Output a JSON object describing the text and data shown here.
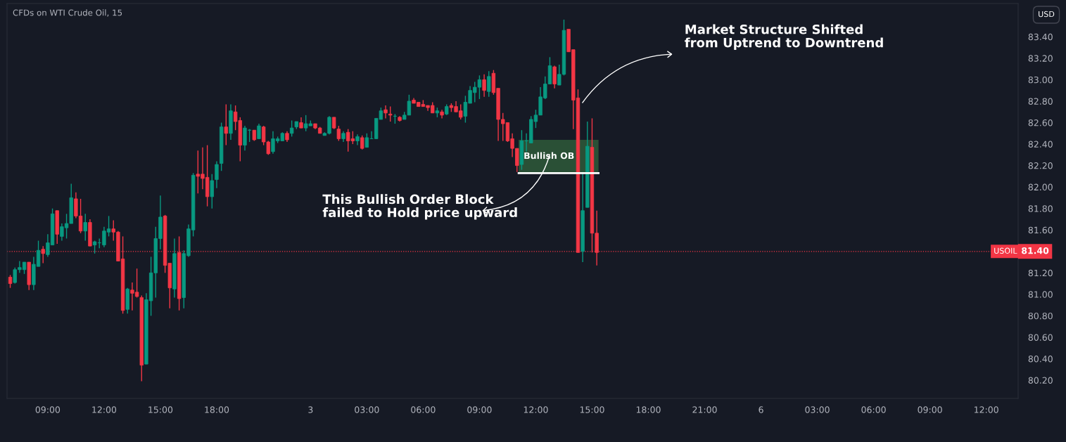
{
  "chart_data": {
    "type": "candlestick",
    "title": "CFDs on WTI Crude Oil, 15",
    "categories": [
      null,
      null,
      null,
      null,
      null,
      null,
      null,
      null,
      "09:00",
      null,
      null,
      null,
      null,
      null,
      null,
      null,
      null,
      null,
      null,
      null,
      "12:00",
      null,
      null,
      null,
      null,
      null,
      null,
      null,
      null,
      null,
      null,
      null,
      "15:00",
      null,
      null,
      null,
      null,
      null,
      null,
      null,
      null,
      null,
      null,
      null,
      "18:00",
      null,
      null,
      null,
      null,
      null,
      null,
      null,
      null,
      null,
      null,
      null,
      null,
      null,
      null,
      null,
      null,
      null,
      null,
      null,
      "3",
      null,
      null,
      null,
      null,
      null,
      null,
      null,
      null,
      null,
      null,
      null,
      "03:00",
      null,
      null,
      null,
      null,
      null,
      null,
      null,
      null,
      null,
      null,
      null,
      "06:00",
      null,
      null,
      null,
      null,
      null,
      null,
      null,
      null,
      null,
      null,
      null,
      "09:00",
      null,
      null,
      null,
      null,
      null,
      null,
      null,
      null,
      null,
      null,
      null,
      "12:00",
      null,
      null,
      null,
      null,
      null,
      null,
      null,
      null,
      null,
      null,
      null,
      "15:00",
      null,
      null,
      null,
      null,
      null,
      null,
      null,
      null,
      null,
      null,
      null,
      "18:00",
      null,
      null,
      null,
      null,
      null,
      null,
      null,
      null,
      null,
      null,
      null,
      "21:00",
      null,
      null,
      null,
      null,
      null,
      null,
      null,
      null,
      null,
      null,
      null,
      "6",
      null,
      null,
      null,
      null,
      null,
      null,
      null,
      null,
      null,
      null,
      null,
      "03:00",
      null,
      null,
      null,
      null,
      null,
      null,
      null,
      null,
      null,
      null,
      null,
      "06:00",
      null,
      null,
      null,
      null,
      null,
      null,
      null,
      null,
      null,
      null,
      null,
      "09:00",
      null,
      null,
      null,
      null,
      null,
      null,
      null,
      null,
      null,
      null,
      null,
      "12:00",
      null,
      null,
      null,
      null,
      null,
      null
    ],
    "ohlc": [
      [
        81.16,
        81.18,
        81.06,
        81.1
      ],
      [
        81.11,
        81.25,
        81.1,
        81.23
      ],
      [
        81.23,
        81.31,
        81.2,
        81.25
      ],
      [
        81.23,
        81.3,
        81.19,
        81.3
      ],
      [
        81.3,
        81.3,
        81.04,
        81.09
      ],
      [
        81.09,
        81.35,
        81.04,
        81.28
      ],
      [
        81.26,
        81.5,
        81.26,
        81.41
      ],
      [
        81.42,
        81.45,
        81.29,
        81.38
      ],
      [
        81.37,
        81.56,
        81.35,
        81.48
      ],
      [
        81.46,
        81.8,
        81.46,
        81.75
      ],
      [
        81.78,
        81.78,
        81.47,
        81.56
      ],
      [
        81.54,
        81.66,
        81.5,
        81.63
      ],
      [
        81.62,
        81.75,
        81.52,
        81.66
      ],
      [
        81.66,
        82.03,
        81.66,
        81.9
      ],
      [
        81.89,
        81.95,
        81.71,
        81.73
      ],
      [
        81.73,
        81.89,
        81.57,
        81.59
      ],
      [
        81.59,
        81.75,
        81.5,
        81.67
      ],
      [
        81.67,
        81.7,
        81.45,
        81.45
      ],
      [
        81.46,
        81.5,
        81.38,
        81.49
      ],
      [
        81.48,
        81.52,
        81.43,
        81.48
      ],
      [
        81.46,
        81.63,
        81.44,
        81.59
      ],
      [
        81.58,
        81.73,
        81.54,
        81.61
      ],
      [
        81.61,
        81.69,
        81.5,
        81.58
      ],
      [
        81.58,
        81.59,
        81.31,
        81.31
      ],
      [
        81.33,
        81.54,
        80.82,
        80.85
      ],
      [
        80.86,
        81.06,
        80.82,
        81.05
      ],
      [
        81.04,
        81.11,
        80.85,
        81.01
      ],
      [
        81.02,
        81.24,
        80.97,
        80.98
      ],
      [
        80.97,
        80.99,
        80.19,
        80.34
      ],
      [
        80.35,
        81.01,
        80.35,
        80.95
      ],
      [
        80.94,
        81.35,
        80.8,
        81.2
      ],
      [
        81.2,
        81.63,
        80.97,
        81.52
      ],
      [
        81.52,
        81.92,
        81.42,
        81.72
      ],
      [
        81.73,
        81.74,
        81.2,
        81.27
      ],
      [
        81.29,
        81.29,
        80.87,
        81.06
      ],
      [
        81.05,
        81.52,
        80.97,
        81.38
      ],
      [
        81.39,
        81.54,
        80.85,
        80.96
      ],
      [
        80.97,
        81.41,
        80.87,
        81.38
      ],
      [
        81.36,
        81.65,
        81.35,
        81.61
      ],
      [
        81.6,
        82.13,
        81.54,
        82.11
      ],
      [
        82.12,
        82.34,
        81.94,
        82.1
      ],
      [
        82.12,
        82.37,
        81.98,
        82.08
      ],
      [
        82.09,
        82.39,
        81.82,
        81.91
      ],
      [
        81.91,
        82.12,
        81.8,
        82.06
      ],
      [
        82.07,
        82.24,
        81.99,
        82.21
      ],
      [
        82.22,
        82.6,
        82.15,
        82.56
      ],
      [
        82.56,
        82.77,
        82.39,
        82.5
      ],
      [
        82.5,
        82.77,
        82.44,
        82.71
      ],
      [
        82.7,
        82.76,
        82.53,
        82.61
      ],
      [
        82.62,
        82.65,
        82.24,
        82.39
      ],
      [
        82.39,
        82.57,
        82.34,
        82.55
      ],
      [
        82.53,
        82.54,
        82.42,
        82.53
      ],
      [
        82.53,
        82.53,
        82.43,
        82.44
      ],
      [
        82.45,
        82.59,
        82.45,
        82.57
      ],
      [
        82.56,
        82.57,
        82.39,
        82.42
      ],
      [
        82.42,
        82.43,
        82.3,
        82.31
      ],
      [
        82.33,
        82.52,
        82.31,
        82.45
      ],
      [
        82.43,
        82.47,
        82.41,
        82.45
      ],
      [
        82.43,
        82.51,
        82.43,
        82.5
      ],
      [
        82.5,
        82.52,
        82.42,
        82.44
      ],
      [
        82.5,
        82.62,
        82.47,
        82.55
      ],
      [
        82.56,
        82.61,
        82.54,
        82.61
      ],
      [
        82.6,
        82.65,
        82.55,
        82.55
      ],
      [
        82.55,
        82.67,
        82.52,
        82.59
      ],
      [
        82.57,
        82.62,
        82.57,
        82.59
      ],
      [
        82.59,
        82.59,
        82.54,
        82.55
      ],
      [
        82.55,
        82.56,
        82.5,
        82.5
      ],
      [
        82.48,
        82.51,
        82.48,
        82.5
      ],
      [
        82.5,
        82.66,
        82.49,
        82.65
      ],
      [
        82.65,
        82.65,
        82.54,
        82.55
      ],
      [
        82.54,
        82.57,
        82.43,
        82.45
      ],
      [
        82.45,
        82.52,
        82.42,
        82.5
      ],
      [
        82.51,
        82.54,
        82.33,
        82.43
      ],
      [
        82.45,
        82.52,
        82.4,
        82.43
      ],
      [
        82.43,
        82.49,
        82.39,
        82.47
      ],
      [
        82.46,
        82.48,
        82.35,
        82.36
      ],
      [
        82.37,
        82.5,
        82.37,
        82.46
      ],
      [
        82.45,
        82.52,
        82.45,
        82.45
      ],
      [
        82.45,
        82.64,
        82.45,
        82.64
      ],
      [
        82.63,
        82.74,
        82.63,
        82.71
      ],
      [
        82.72,
        82.76,
        82.64,
        82.69
      ],
      [
        82.68,
        82.75,
        82.61,
        82.67
      ],
      [
        82.66,
        82.68,
        82.59,
        82.66
      ],
      [
        82.65,
        82.66,
        82.61,
        82.62
      ],
      [
        82.63,
        82.7,
        82.63,
        82.67
      ],
      [
        82.67,
        82.86,
        82.67,
        82.8
      ],
      [
        82.81,
        82.83,
        82.78,
        82.78
      ],
      [
        82.79,
        82.79,
        82.75,
        82.75
      ],
      [
        82.77,
        82.81,
        82.75,
        82.75
      ],
      [
        82.76,
        82.76,
        82.71,
        82.74
      ],
      [
        82.76,
        82.79,
        82.69,
        82.69
      ],
      [
        82.69,
        82.74,
        82.65,
        82.71
      ],
      [
        82.7,
        82.72,
        82.64,
        82.67
      ],
      [
        82.68,
        82.77,
        82.67,
        82.75
      ],
      [
        82.76,
        82.78,
        82.7,
        82.74
      ],
      [
        82.75,
        82.8,
        82.7,
        82.7
      ],
      [
        82.71,
        82.77,
        82.63,
        82.65
      ],
      [
        82.66,
        82.85,
        82.6,
        82.79
      ],
      [
        82.78,
        82.94,
        82.78,
        82.9
      ],
      [
        82.88,
        82.98,
        82.79,
        82.93
      ],
      [
        82.93,
        83.04,
        82.82,
        83.0
      ],
      [
        83.0,
        83.05,
        82.84,
        82.9
      ],
      [
        82.89,
        83.08,
        82.84,
        83.03
      ],
      [
        83.06,
        83.09,
        82.86,
        82.88
      ],
      [
        82.92,
        82.92,
        82.43,
        82.63
      ],
      [
        82.63,
        82.69,
        82.43,
        82.59
      ],
      [
        82.6,
        82.6,
        82.42,
        82.43
      ],
      [
        82.45,
        82.5,
        82.28,
        82.36
      ],
      [
        82.36,
        82.36,
        82.14,
        82.2
      ],
      [
        82.21,
        82.53,
        82.16,
        82.43
      ],
      [
        82.43,
        82.5,
        82.33,
        82.43
      ],
      [
        82.41,
        82.66,
        82.41,
        82.63
      ],
      [
        82.61,
        82.72,
        82.55,
        82.67
      ],
      [
        82.67,
        82.93,
        82.67,
        82.84
      ],
      [
        82.83,
        83.03,
        82.82,
        82.96
      ],
      [
        82.96,
        83.21,
        82.96,
        83.13
      ],
      [
        83.12,
        83.13,
        82.92,
        82.96
      ],
      [
        82.95,
        83.14,
        82.95,
        83.05
      ],
      [
        83.05,
        83.56,
        83.04,
        83.46
      ],
      [
        83.47,
        83.47,
        83.26,
        83.26
      ],
      [
        83.28,
        83.28,
        82.54,
        82.81
      ],
      [
        82.83,
        82.91,
        81.39,
        81.39
      ],
      [
        81.4,
        82.14,
        81.3,
        81.78
      ],
      [
        81.81,
        82.61,
        81.81,
        82.38
      ],
      [
        82.37,
        82.64,
        81.39,
        81.57
      ],
      [
        81.57,
        81.78,
        81.27,
        81.39
      ],
      null,
      null,
      null,
      null,
      null,
      null,
      null,
      null,
      null,
      null,
      null,
      null,
      null,
      null,
      null,
      null,
      null,
      null,
      null,
      null,
      null,
      null,
      null,
      null,
      null,
      null,
      null,
      null,
      null,
      null,
      null,
      null,
      null,
      null,
      null,
      null,
      null,
      null,
      null,
      null,
      null,
      null,
      null,
      null,
      null,
      null,
      null,
      null,
      null,
      null,
      null,
      null,
      null,
      null,
      null,
      null,
      null,
      null,
      null,
      null,
      null,
      null,
      null,
      null,
      null,
      null,
      null,
      null,
      null,
      null,
      null,
      null,
      null,
      null,
      null,
      null,
      null,
      null,
      null,
      null,
      null,
      null,
      null,
      null,
      null,
      null,
      null,
      null,
      null
    ],
    "ylim": [
      80.03,
      83.71
    ],
    "yticks": [
      {
        "value": 80.2,
        "label": "80.20"
      },
      {
        "value": 80.4,
        "label": "80.40"
      },
      {
        "value": 80.6,
        "label": "80.60"
      },
      {
        "value": 80.8,
        "label": "80.80"
      },
      {
        "value": 81.0,
        "label": "81.00"
      },
      {
        "value": 81.2,
        "label": "81.20"
      },
      {
        "value": 81.6,
        "label": "81.60"
      },
      {
        "value": 81.8,
        "label": "81.80"
      },
      {
        "value": 82.0,
        "label": "82.00"
      },
      {
        "value": 82.2,
        "label": "82.20"
      },
      {
        "value": 82.4,
        "label": "82.40"
      },
      {
        "value": 82.6,
        "label": "82.60"
      },
      {
        "value": 82.8,
        "label": "82.80"
      },
      {
        "value": 83.0,
        "label": "83.00"
      },
      {
        "value": 83.2,
        "label": "83.20"
      },
      {
        "value": 83.4,
        "label": "83.40"
      }
    ],
    "ref_lines": [
      {
        "axis": "y",
        "value": 81.4,
        "label": "USOIL",
        "color": "#f23645",
        "line_style": "dotted"
      }
    ],
    "bands": [
      {
        "axis": "y",
        "from": 82.13,
        "to": 82.44,
        "label": "Bullish OB",
        "color": "#2e5b3a"
      }
    ],
    "annotations": [
      "Market Structure Shifted\nfrom Uptrend to Downtrend",
      "This Bullish Order Block\nfailed to Hold price upward",
      "USD",
      "81.40"
    ],
    "grid": false
  }
}
